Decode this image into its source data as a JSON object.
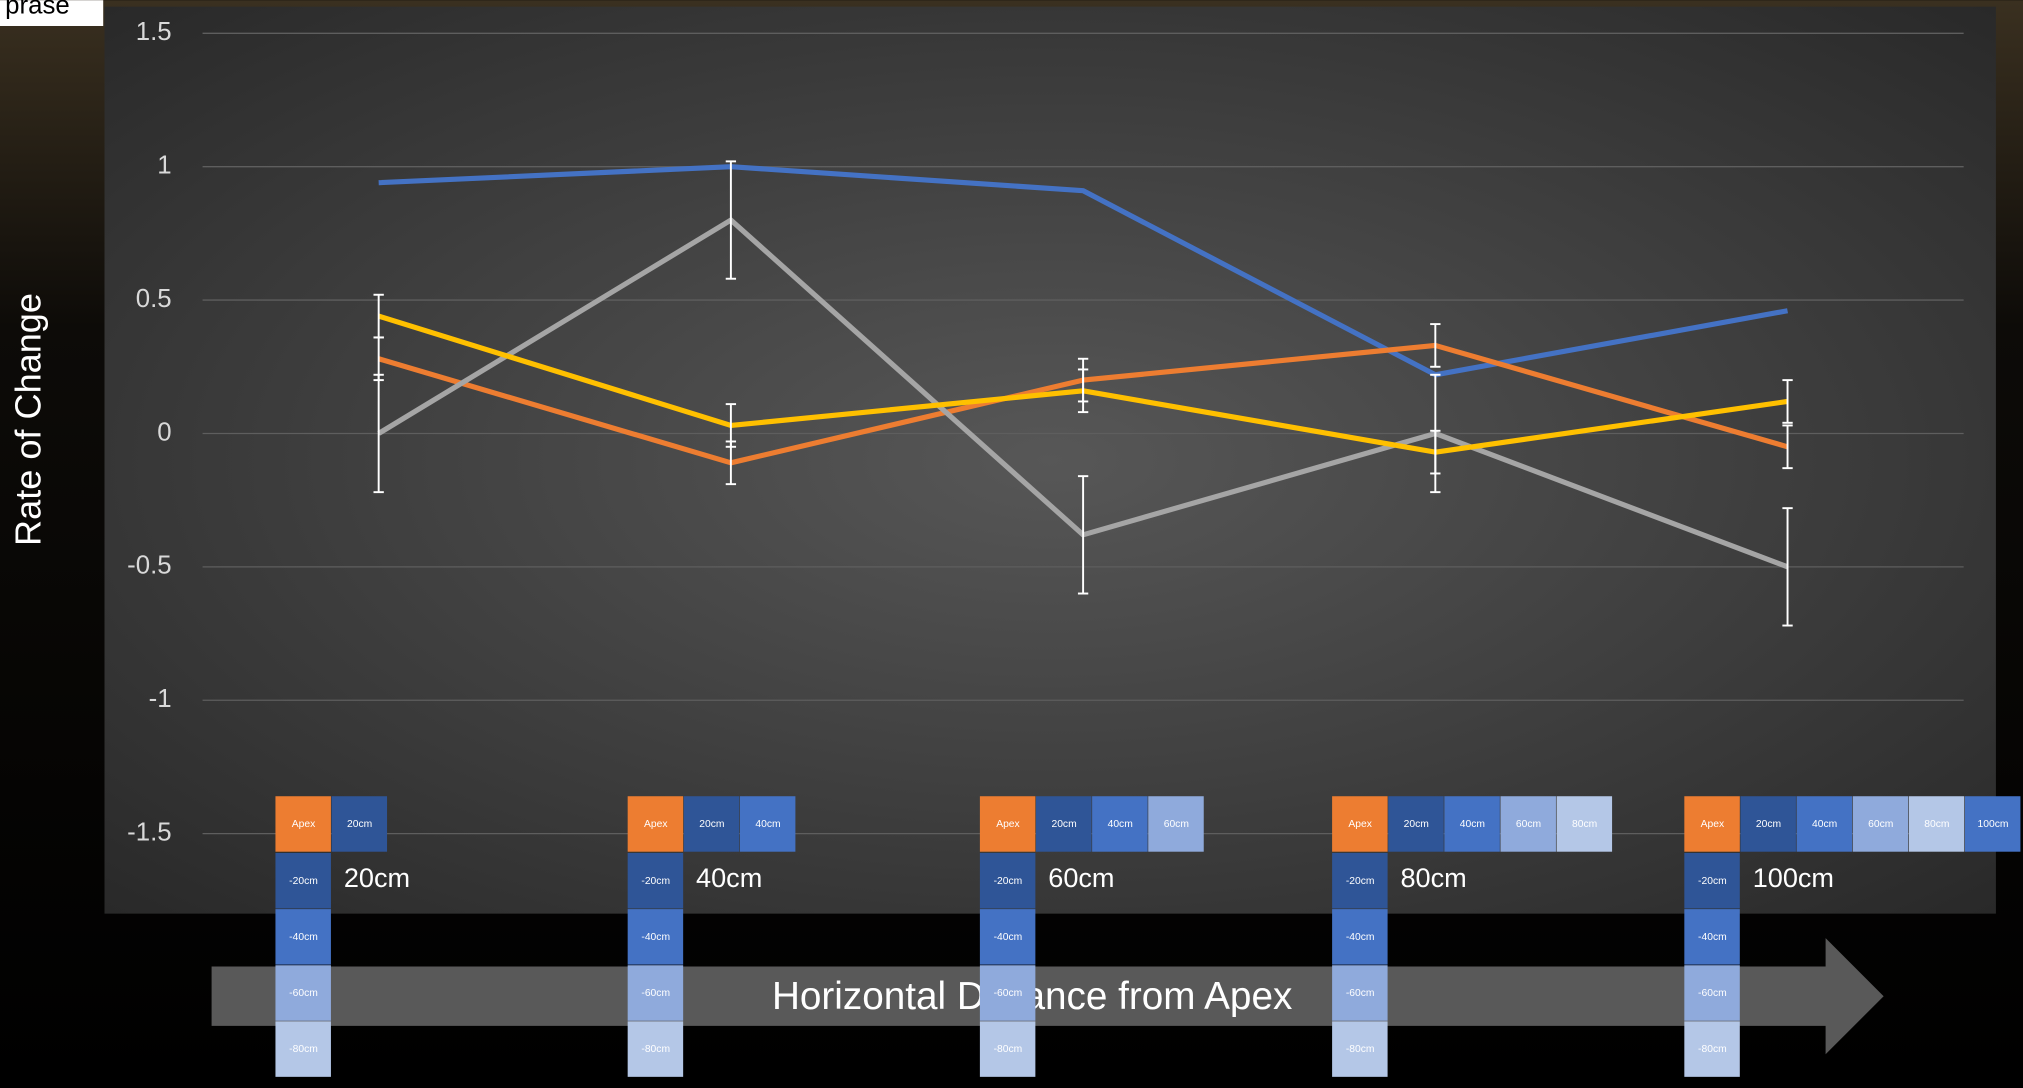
{
  "corner_text": "prase",
  "chart_data": {
    "type": "line",
    "y_label": "Rate of Change",
    "x_label": "Horizontal Distance from Apex",
    "categories": [
      "20cm",
      "40cm",
      "60cm",
      "80cm",
      "100cm"
    ],
    "ylim": [
      -1.8,
      1.6
    ],
    "yticks": [
      -1.5,
      -1,
      -0.5,
      0,
      0.5,
      1,
      1.5
    ],
    "grid": true,
    "series": [
      {
        "color": "#4472c4",
        "values": [
          0.94,
          1.0,
          0.91,
          0.22,
          0.46
        ]
      },
      {
        "color": "#ed7d31",
        "values": [
          0.28,
          -0.11,
          0.2,
          0.33,
          -0.05
        ],
        "errors": [
          0.08,
          0.08,
          0.08,
          0.08,
          0.08
        ]
      },
      {
        "color": "#a5a5a5",
        "values": [
          0,
          0.8,
          -0.38,
          0,
          -0.5
        ],
        "errors": [
          0.22,
          0.22,
          0.22,
          0.22,
          0.22
        ]
      },
      {
        "color": "#ffc000",
        "values": [
          0.44,
          0.03,
          0.16,
          -0.07,
          0.12
        ],
        "errors": [
          0.08,
          0.08,
          0.08,
          0.08,
          0.08
        ]
      }
    ],
    "diagrams": [
      {
        "top": [
          "Apex",
          "20cm"
        ],
        "side": [
          "-20cm",
          "-40cm",
          "-60cm",
          "-80cm"
        ]
      },
      {
        "top": [
          "Apex",
          "20cm",
          "40cm"
        ],
        "side": [
          "-20cm",
          "-40cm",
          "-60cm",
          "-80cm"
        ]
      },
      {
        "top": [
          "Apex",
          "20cm",
          "40cm",
          "60cm"
        ],
        "side": [
          "-20cm",
          "-40cm",
          "-60cm",
          "-80cm"
        ]
      },
      {
        "top": [
          "Apex",
          "20cm",
          "40cm",
          "60cm",
          "80cm"
        ],
        "side": [
          "-20cm",
          "-40cm",
          "-60cm",
          "-80cm"
        ]
      },
      {
        "top": [
          "Apex",
          "20cm",
          "40cm",
          "60cm",
          "80cm",
          "100cm"
        ],
        "side": [
          "-20cm",
          "-40cm",
          "-60cm",
          "-80cm"
        ]
      }
    ]
  }
}
